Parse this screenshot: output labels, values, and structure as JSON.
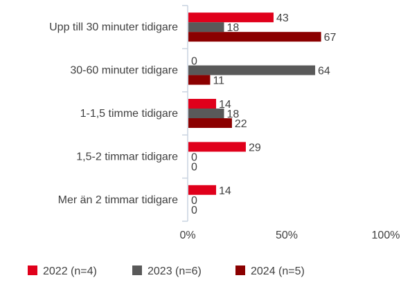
{
  "chart_data": {
    "type": "bar",
    "orientation": "horizontal",
    "title": "",
    "xlabel": "",
    "ylabel": "",
    "categories": [
      "Upp till 30 minuter tidigare",
      "30-60 minuter tidigare",
      "1-1,5 timme tidigare",
      "1,5-2 timmar tidigare",
      "Mer än 2 timmar tidigare"
    ],
    "series": [
      {
        "name": "2022 (n=4)",
        "color": "#e0001b",
        "values": [
          43,
          0,
          14,
          29,
          14
        ]
      },
      {
        "name": "2023 (n=6)",
        "color": "#595959",
        "values": [
          18,
          64,
          18,
          0,
          0
        ]
      },
      {
        "name": "2024 (n=5)",
        "color": "#8b0000",
        "values": [
          67,
          11,
          22,
          0,
          0
        ]
      }
    ],
    "value_unit": "%",
    "xlim": [
      0,
      100
    ],
    "x_ticks": [
      {
        "value": 0,
        "label": "0%"
      },
      {
        "value": 50,
        "label": "50%"
      },
      {
        "value": 100,
        "label": "100%"
      }
    ],
    "grid": false,
    "legend_position": "bottom"
  }
}
